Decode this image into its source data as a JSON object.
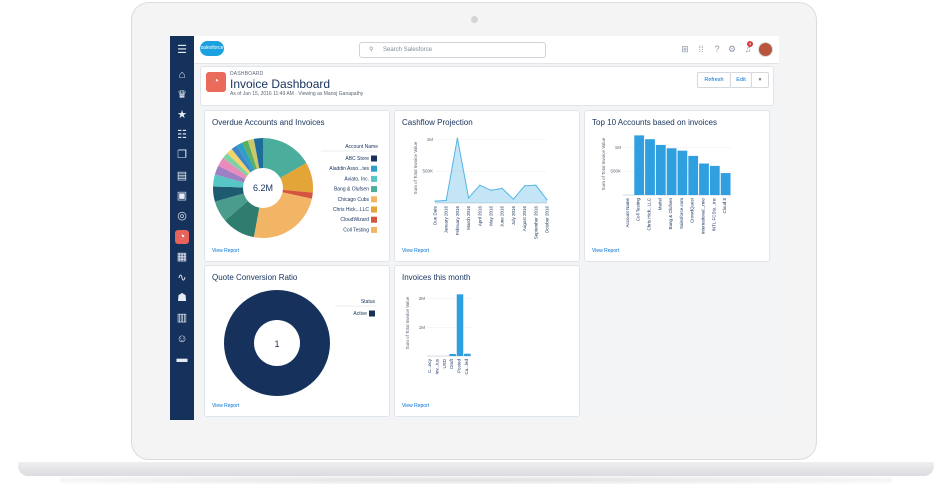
{
  "app": {
    "logo_text": "salesforce",
    "search_placeholder": "Search Salesforce",
    "notification_count": "4",
    "nav_icons": [
      "menu-icon",
      "home-icon",
      "crown-icon",
      "star-icon",
      "task-list-icon",
      "files-icon",
      "report-icon",
      "contacts-card-icon",
      "target-icon",
      "dashboard-icon",
      "clipboard-icon",
      "pulse-icon",
      "groups-icon",
      "calendar-icon",
      "person-icon",
      "briefcase-icon"
    ],
    "top_icons": [
      "add-icon",
      "app-launcher-icon",
      "help-icon",
      "settings-icon",
      "notifications-icon"
    ]
  },
  "header": {
    "breadcrumb": "DASHBOARD",
    "title": "Invoice Dashboard",
    "subtitle": "As of Jan 15, 2016 11:49 AM · Viewing as Manoj Ganapathy",
    "refresh_label": "Refresh",
    "edit_label": "Edit",
    "menu_label": "▾"
  },
  "cards": {
    "overdue": {
      "title": "Overdue Accounts and Invoices",
      "center_label": "6.2M",
      "legend_title": "Account Name",
      "view_report": "View Report"
    },
    "cashflow": {
      "title": "Cashflow Projection",
      "view_report": "View Report"
    },
    "top10": {
      "title": "Top 10 Accounts based on invoices",
      "view_report": "View Report"
    },
    "quote": {
      "title": "Quote Conversion Ratio",
      "center_label": "1",
      "legend_title": "Status",
      "view_report": "View Report"
    },
    "invoices_month": {
      "title": "Invoices this month",
      "view_report": "View Report"
    }
  },
  "chart_data": [
    {
      "id": "overdue",
      "type": "pie",
      "title": "Overdue Accounts and Invoices",
      "center_text": "6.2M",
      "legend_title": "Account Name",
      "legend": [
        "ABC Store",
        "Aladdin Asso...tes",
        "Aviato, Inc.",
        "Bang & Olufsen",
        "Chicago Cubs",
        "Chris Hick...LLC",
        "CloudWizard",
        "Coll Testing"
      ],
      "slices": [
        {
          "label": "",
          "value": 17,
          "color": "#4bad9c"
        },
        {
          "label": "",
          "value": 10,
          "color": "#e3a538"
        },
        {
          "label": "",
          "value": 2,
          "color": "#d4543e"
        },
        {
          "label": "",
          "value": 25,
          "color": "#f2b566"
        },
        {
          "label": "",
          "value": 11,
          "color": "#2e7d6f"
        },
        {
          "label": "",
          "value": 7,
          "color": "#4a9d8c"
        },
        {
          "label": "",
          "value": 5,
          "color": "#1e5b71"
        },
        {
          "label": "",
          "value": 4,
          "color": "#56c7c4"
        },
        {
          "label": "",
          "value": 3,
          "color": "#9d7fc4"
        },
        {
          "label": "",
          "value": 3,
          "color": "#e98cbc"
        },
        {
          "label": "",
          "value": 2,
          "color": "#7ed3a4"
        },
        {
          "label": "",
          "value": 2,
          "color": "#f3d36b"
        },
        {
          "label": "",
          "value": 2,
          "color": "#3f86c6"
        },
        {
          "label": "",
          "value": 2,
          "color": "#2f9fc9"
        },
        {
          "label": "",
          "value": 2,
          "color": "#5ab05e"
        },
        {
          "label": "",
          "value": 2,
          "color": "#c9c96b"
        },
        {
          "label": "",
          "value": 3,
          "color": "#1f6b9c"
        }
      ],
      "legend_colors": [
        "#16325c",
        "#2f9fc9",
        "#56c7c4",
        "#4bad9c",
        "#f2b566",
        "#e3a538",
        "#d4543e",
        "#f2b566"
      ]
    },
    {
      "id": "cashflow",
      "type": "area",
      "title": "Cashflow Projection",
      "ylabel": "Sum of Total Invoice Value",
      "y_ticks": [
        "500K",
        "1M"
      ],
      "ylim": [
        0,
        1100000
      ],
      "categories": [
        "Due Date",
        "January 2016",
        "February 2016",
        "March 2016",
        "April 2016",
        "May 2016",
        "June 2016",
        "July 2016",
        "August 2016",
        "September 2016",
        "October 2016"
      ],
      "values": [
        30000,
        40000,
        1020000,
        80000,
        280000,
        200000,
        230000,
        60000,
        270000,
        280000,
        50000
      ],
      "color": "#54b4e4"
    },
    {
      "id": "top10",
      "type": "bar",
      "title": "Top 10 Accounts based on invoices",
      "ylabel": "Sum of Total Invoice Value",
      "y_ticks": [
        "500K",
        "1M"
      ],
      "ylim": [
        0,
        1300000
      ],
      "categories": [
        "Account Name",
        "Coll Testing",
        "Chris Hick...LLC",
        "Mattel",
        "Bang & Olufsen",
        "Salesforce.com",
        "CrowdQuest",
        "International...rmo",
        "INTL FCStu...Inc",
        "Cloud 8"
      ],
      "values": [
        0,
        1250000,
        1170000,
        1050000,
        980000,
        930000,
        820000,
        660000,
        610000,
        460000
      ],
      "color": "#2f9fe0"
    },
    {
      "id": "quote",
      "type": "pie",
      "title": "Quote Conversion Ratio",
      "center_text": "1",
      "legend_title": "Status",
      "legend": [
        "Active"
      ],
      "slices": [
        {
          "label": "Active",
          "value": 1,
          "color": "#16325c"
        }
      ],
      "legend_colors": [
        "#16325c"
      ]
    },
    {
      "id": "invoices_month",
      "type": "bar",
      "title": "Invoices this month",
      "ylabel": "Sum of Total Invoice Value",
      "y_ticks": [
        "1M",
        "2M"
      ],
      "ylim": [
        0,
        2300000
      ],
      "categories": [
        "C...ncy",
        "Inv...tus",
        "USD",
        "Draft",
        "Posted",
        "Ca...led"
      ],
      "values": [
        0,
        0,
        0,
        70000,
        2150000,
        80000
      ],
      "color": "#2f9fe0"
    }
  ]
}
